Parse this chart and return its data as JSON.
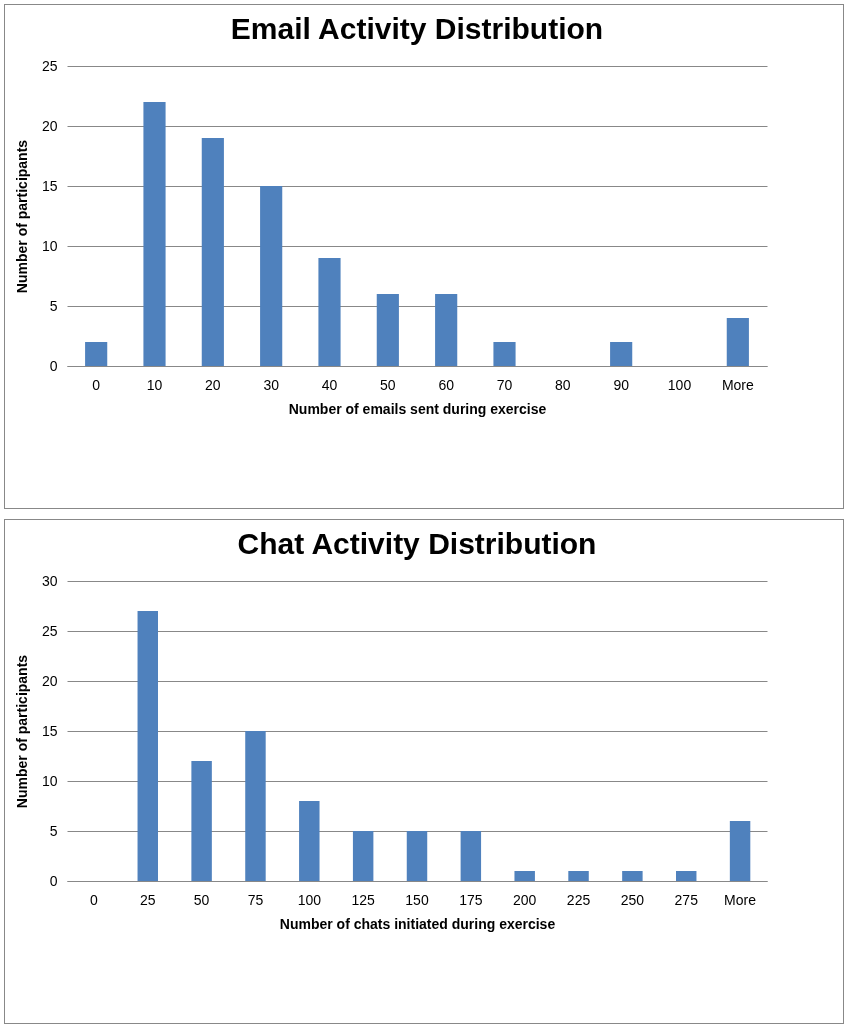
{
  "chart_data": [
    {
      "type": "bar",
      "title": "Email Activity Distribution",
      "xlabel": "Number of emails sent during exercise",
      "ylabel": "Number of participants",
      "categories": [
        "0",
        "10",
        "20",
        "30",
        "40",
        "50",
        "60",
        "70",
        "80",
        "90",
        "100",
        "More"
      ],
      "values": [
        2,
        22,
        19,
        15,
        9,
        6,
        6,
        2,
        0,
        2,
        0,
        4
      ],
      "color": "#4f81bd",
      "ylim": [
        0,
        25
      ],
      "yticks": [
        0,
        5,
        10,
        15,
        20,
        25
      ],
      "grid": "y"
    },
    {
      "type": "bar",
      "title": "Chat Activity Distribution",
      "xlabel": "Number of chats initiated during exercise",
      "ylabel": "Number of participants",
      "categories": [
        "0",
        "25",
        "50",
        "75",
        "100",
        "125",
        "150",
        "175",
        "200",
        "225",
        "250",
        "275",
        "More"
      ],
      "values": [
        0,
        27,
        12,
        15,
        8,
        5,
        5,
        5,
        1,
        1,
        1,
        1,
        6
      ],
      "color": "#4f81bd",
      "ylim": [
        0,
        30
      ],
      "yticks": [
        0,
        5,
        10,
        15,
        20,
        25,
        30
      ],
      "grid": "y"
    }
  ]
}
